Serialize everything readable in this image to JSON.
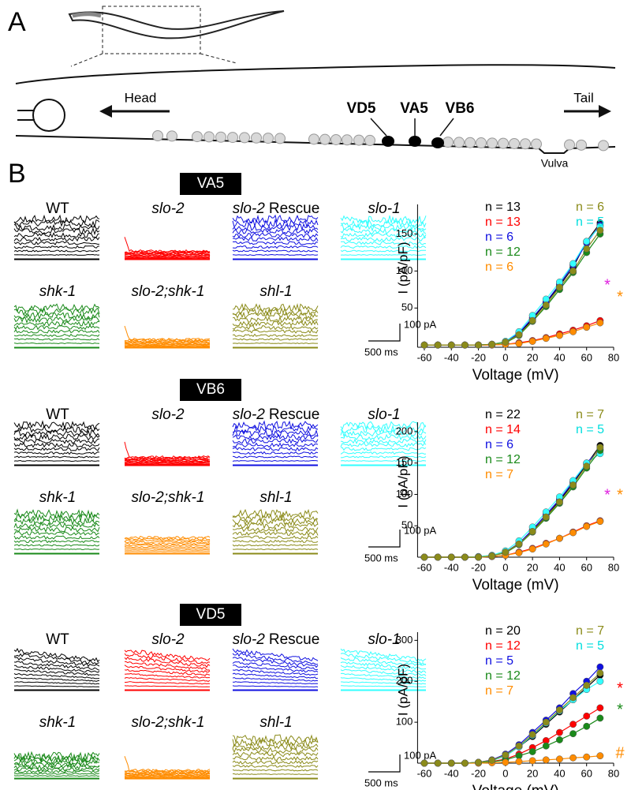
{
  "panels": {
    "a": "A",
    "b": "B"
  },
  "diagram": {
    "head": "Head",
    "tail": "Tail",
    "neurons": [
      "VD5",
      "VA5",
      "VB6"
    ],
    "vulva": "Vulva"
  },
  "sections": [
    {
      "title": "VA5",
      "scale": {
        "current": "100 pA",
        "time": "500 ms"
      },
      "traces": [
        {
          "label": "WT",
          "italic": false,
          "color": "#000000"
        },
        {
          "label": "slo-2",
          "italic": true,
          "color": "#ff0000"
        },
        {
          "label": "slo-2",
          "suffix": "Rescue",
          "italic": true,
          "color": "#1010e0"
        },
        {
          "label": "slo-1",
          "italic": true,
          "color": "#33ffff"
        },
        {
          "label": "shk-1",
          "italic": true,
          "color": "#1a8a1a"
        },
        {
          "label": "slo-2;shk-1",
          "italic": true,
          "color": "#ff8c00"
        },
        {
          "label": "shl-1",
          "italic": true,
          "color": "#8b8b1a"
        }
      ]
    },
    {
      "title": "VB6",
      "scale": {
        "current": "100 pA",
        "time": "500 ms"
      },
      "traces": [
        {
          "label": "WT",
          "italic": false,
          "color": "#000000"
        },
        {
          "label": "slo-2",
          "italic": true,
          "color": "#ff0000"
        },
        {
          "label": "slo-2",
          "suffix": "Rescue",
          "italic": true,
          "color": "#1010e0"
        },
        {
          "label": "slo-1",
          "italic": true,
          "color": "#33ffff"
        },
        {
          "label": "shk-1",
          "italic": true,
          "color": "#1a8a1a"
        },
        {
          "label": "slo-2;shk-1",
          "italic": true,
          "color": "#ff8c00"
        },
        {
          "label": "shl-1",
          "italic": true,
          "color": "#8b8b1a"
        }
      ]
    },
    {
      "title": "VD5",
      "scale": {
        "current": "100 pA",
        "time": "500 ms"
      },
      "traces": [
        {
          "label": "WT",
          "italic": false,
          "color": "#000000"
        },
        {
          "label": "slo-2",
          "italic": true,
          "color": "#ff0000"
        },
        {
          "label": "slo-2",
          "suffix": "Rescue",
          "italic": true,
          "color": "#1010e0"
        },
        {
          "label": "slo-1",
          "italic": true,
          "color": "#33ffff"
        },
        {
          "label": "shk-1",
          "italic": true,
          "color": "#1a8a1a"
        },
        {
          "label": "slo-2;shk-1",
          "italic": true,
          "color": "#ff8c00"
        },
        {
          "label": "shl-1",
          "italic": true,
          "color": "#8b8b1a"
        }
      ]
    }
  ],
  "chart_data": [
    {
      "type": "line",
      "xlabel": "Voltage (mV)",
      "ylabel": "I (pA/pF)",
      "x": [
        -60,
        -50,
        -40,
        -30,
        -20,
        -10,
        0,
        10,
        20,
        30,
        40,
        50,
        60,
        70
      ],
      "xlim": [
        -65,
        80
      ],
      "xticks": [
        -60,
        -40,
        -20,
        0,
        20,
        40,
        60,
        80
      ],
      "ylim": [
        -3,
        190
      ],
      "yticks": [
        50,
        100,
        150
      ],
      "series": [
        {
          "name": "n = 13",
          "color": "#000000",
          "values": [
            0,
            0,
            0,
            0,
            0,
            1,
            4,
            15,
            35,
            57,
            80,
            105,
            140,
            165
          ]
        },
        {
          "name": "n = 13",
          "color": "#ff0000",
          "values": [
            0,
            0,
            0,
            0,
            0,
            0,
            1,
            3,
            6,
            10,
            15,
            20,
            26,
            33
          ]
        },
        {
          "name": "n = 6",
          "color": "#1010e0",
          "values": [
            0,
            0,
            0,
            0,
            0,
            1,
            4,
            16,
            37,
            58,
            82,
            108,
            138,
            162
          ]
        },
        {
          "name": "n = 5",
          "color": "#33ffff",
          "values": [
            0,
            0,
            0,
            0,
            0,
            1,
            5,
            18,
            40,
            62,
            85,
            110,
            140,
            160
          ]
        },
        {
          "name": "n = 12",
          "color": "#1a8a1a",
          "values": [
            0,
            0,
            0,
            0,
            0,
            1,
            3,
            13,
            32,
            52,
            75,
            98,
            125,
            150
          ]
        },
        {
          "name": "n = 6",
          "color": "#ff8c00",
          "values": [
            0,
            0,
            0,
            0,
            0,
            0,
            1,
            2,
            5,
            9,
            13,
            18,
            24,
            30
          ]
        },
        {
          "name": "n = 6",
          "color": "#8b8b1a",
          "values": [
            0,
            0,
            0,
            0,
            0,
            1,
            4,
            14,
            33,
            54,
            78,
            100,
            130,
            155
          ]
        }
      ],
      "annotations": [
        {
          "text": "*",
          "color": "#e020e0"
        },
        {
          "text": "*",
          "color": "#ff8c00"
        }
      ]
    },
    {
      "type": "line",
      "xlabel": "Voltage (mV)",
      "ylabel": "I (pA/pF)",
      "x": [
        -60,
        -50,
        -40,
        -30,
        -20,
        -10,
        0,
        10,
        20,
        30,
        40,
        50,
        60,
        70
      ],
      "xlim": [
        -65,
        80
      ],
      "xticks": [
        -60,
        -40,
        -20,
        0,
        20,
        40,
        60,
        80
      ],
      "ylim": [
        0,
        215
      ],
      "yticks": [
        50,
        100,
        150,
        200
      ],
      "series": [
        {
          "name": "n = 22",
          "color": "#000000",
          "values": [
            0,
            0,
            0,
            0,
            0,
            2,
            8,
            22,
            42,
            65,
            90,
            118,
            148,
            178
          ]
        },
        {
          "name": "n = 14",
          "color": "#ff0000",
          "values": [
            0,
            0,
            0,
            0,
            0,
            1,
            3,
            8,
            14,
            22,
            30,
            40,
            50,
            58
          ]
        },
        {
          "name": "n = 6",
          "color": "#1010e0",
          "values": [
            0,
            0,
            0,
            0,
            0,
            2,
            8,
            22,
            44,
            68,
            92,
            120,
            150,
            172
          ]
        },
        {
          "name": "n = 5",
          "color": "#33ffff",
          "values": [
            0,
            0,
            0,
            0,
            1,
            3,
            10,
            26,
            48,
            72,
            96,
            122,
            150,
            165
          ]
        },
        {
          "name": "n = 12",
          "color": "#1a8a1a",
          "values": [
            0,
            0,
            0,
            0,
            0,
            2,
            7,
            20,
            40,
            62,
            86,
            112,
            142,
            170
          ]
        },
        {
          "name": "n = 7",
          "color": "#ff8c00",
          "values": [
            0,
            0,
            0,
            0,
            0,
            1,
            3,
            7,
            13,
            21,
            30,
            39,
            49,
            57
          ]
        },
        {
          "name": "n = 7",
          "color": "#8b8b1a",
          "values": [
            0,
            0,
            0,
            0,
            0,
            2,
            8,
            21,
            41,
            64,
            88,
            115,
            145,
            175
          ]
        }
      ],
      "annotations": [
        {
          "text": "*",
          "color": "#e020e0"
        },
        {
          "text": "*",
          "color": "#ff8c00"
        }
      ]
    },
    {
      "type": "line",
      "xlabel": "Voltage (mV)",
      "ylabel": "I (pA/pF)",
      "x": [
        -60,
        -50,
        -40,
        -30,
        -20,
        -10,
        0,
        10,
        20,
        30,
        40,
        50,
        60,
        70
      ],
      "xlim": [
        -65,
        80
      ],
      "xticks": [
        -60,
        -40,
        -20,
        0,
        20,
        40,
        60,
        80
      ],
      "ylim": [
        0,
        320
      ],
      "yticks": [
        100,
        200,
        300
      ],
      "series": [
        {
          "name": "n = 20",
          "color": "#000000",
          "values": [
            0,
            0,
            0,
            0,
            2,
            6,
            18,
            40,
            65,
            95,
            125,
            155,
            185,
            215
          ]
        },
        {
          "name": "n = 12",
          "color": "#ff0000",
          "values": [
            0,
            0,
            0,
            0,
            1,
            4,
            10,
            22,
            38,
            55,
            75,
            95,
            115,
            135
          ]
        },
        {
          "name": "n = 5",
          "color": "#1010e0",
          "values": [
            0,
            0,
            0,
            0,
            2,
            8,
            22,
            45,
            75,
            105,
            135,
            170,
            200,
            235
          ]
        },
        {
          "name": "n = 5",
          "color": "#33ffff",
          "values": [
            0,
            0,
            0,
            0,
            2,
            6,
            18,
            40,
            68,
            98,
            128,
            155,
            180,
            200
          ]
        },
        {
          "name": "n = 12",
          "color": "#1a8a1a",
          "values": [
            0,
            0,
            0,
            0,
            1,
            3,
            8,
            18,
            28,
            42,
            57,
            72,
            90,
            110
          ]
        },
        {
          "name": "n = 7",
          "color": "#ff8c00",
          "values": [
            0,
            0,
            0,
            0,
            0,
            1,
            2,
            4,
            6,
            8,
            10,
            13,
            15,
            18
          ]
        },
        {
          "name": "n = 7",
          "color": "#8b8b1a",
          "values": [
            0,
            0,
            0,
            0,
            2,
            7,
            20,
            42,
            70,
            100,
            130,
            160,
            190,
            220
          ]
        }
      ],
      "annotations": [
        {
          "text": "*",
          "color": "#ff0000"
        },
        {
          "text": "*",
          "color": "#1a8a1a"
        },
        {
          "text": "#",
          "color": "#ff8c00"
        }
      ]
    }
  ]
}
